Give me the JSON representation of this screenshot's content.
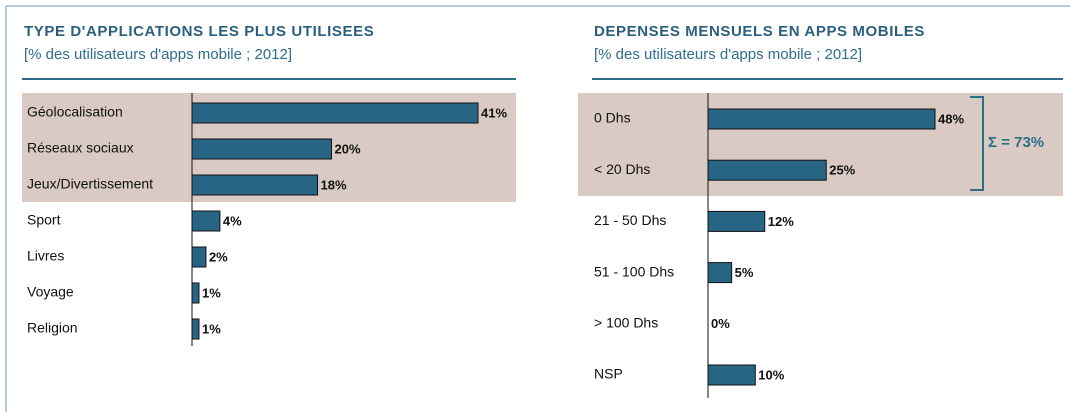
{
  "chart_data": [
    {
      "type": "hbar",
      "title": "TYPE D'APPLICATIONS  LES PLUS UTILISEES",
      "subtitle": "[% des utilisateurs d'apps mobile ; 2012]",
      "categories": [
        "Géolocalisation",
        "Réseaux sociaux",
        "Jeux/Divertissement",
        "Sport",
        "Livres",
        "Voyage",
        "Religion"
      ],
      "values": [
        41,
        20,
        18,
        4,
        2,
        1,
        1
      ],
      "value_labels": [
        "41%",
        "20%",
        "18%",
        "4%",
        "2%",
        "1%",
        "1%"
      ],
      "color": "#286483"
    },
    {
      "type": "hbar",
      "title": "DEPENSES MENSUELS EN APPS MOBILES",
      "subtitle": "[% des utilisateurs d'apps mobile ; 2012]",
      "categories": [
        "0 Dhs",
        "< 20 Dhs",
        "21 - 50 Dhs",
        "51 - 100 Dhs",
        "> 100 Dhs",
        "NSP"
      ],
      "values": [
        48,
        25,
        12,
        5,
        0,
        10
      ],
      "value_labels": [
        "48%",
        "25%",
        "12%",
        "5%",
        "0%",
        "10%"
      ],
      "color": "#286483",
      "annotation": "Σ = 73%"
    }
  ]
}
